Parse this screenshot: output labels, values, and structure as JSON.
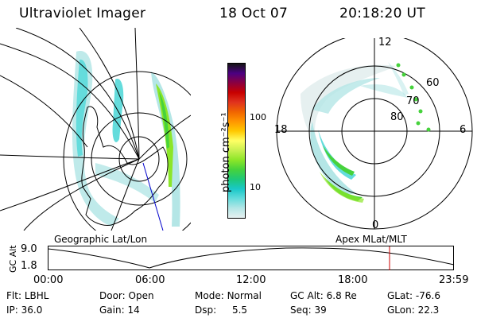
{
  "header": {
    "title": "Ultraviolet Imager",
    "date": "18 Oct 07",
    "time": "20:18:20 UT"
  },
  "colorbar": {
    "label": "photon cm⁻²s⁻¹",
    "ticks": [
      "100",
      "10"
    ],
    "colors": [
      "#141414",
      "#4b0082",
      "#8b0040",
      "#c80000",
      "#e0321e",
      "#f06400",
      "#ff9600",
      "#ffc800",
      "#ffff64",
      "#c8f050",
      "#8ce628",
      "#46d23c",
      "#1ec878",
      "#19c8c8",
      "#64dcdc",
      "#b4e6e6",
      "#e6f0f0"
    ]
  },
  "left_panel": {
    "label": "Geographic Lat/Lon"
  },
  "right_panel": {
    "label": "Apex  MLat/MLT",
    "lat_labels": [
      "80",
      "70",
      "60"
    ],
    "mlt_labels": {
      "top": "12",
      "left": "18",
      "right": "6",
      "bottom": "0"
    }
  },
  "timeline": {
    "axis_title": "GC Alt",
    "y_ticks": [
      "9.0",
      "1.8"
    ],
    "x_ticks": [
      "00:00",
      "06:00",
      "12:00",
      "18:00",
      "23:59"
    ],
    "marker_color": "#cc0000"
  },
  "status": {
    "filter": {
      "label": "Flt:",
      "value": "LBHL"
    },
    "ip": {
      "label": "IP:",
      "value": "36.0"
    },
    "door": {
      "label": "Door:",
      "value": "Open"
    },
    "gain": {
      "label": "Gain:",
      "value": "14"
    },
    "mode": {
      "label": "Mode:",
      "value": "Normal"
    },
    "dsp": {
      "label": "Dsp:",
      "value": "5.5"
    },
    "gc_alt": {
      "label": "GC Alt:",
      "value": "6.8 Re"
    },
    "seq": {
      "label": "Seq:",
      "value": "39"
    },
    "glat": {
      "label": "GLat:",
      "value": "-76.6"
    },
    "glon": {
      "label": "GLon:",
      "value": "22.3"
    }
  }
}
